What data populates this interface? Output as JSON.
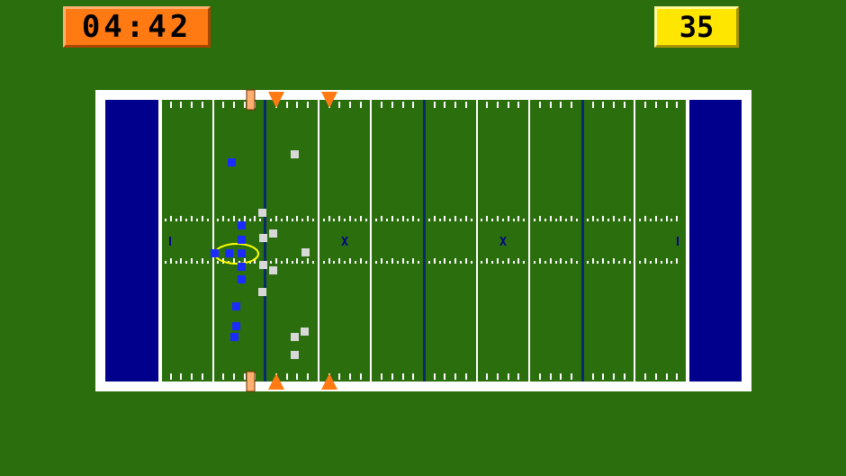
{
  "hud": {
    "game_clock": "04:42",
    "play_clock": "35"
  },
  "colors": {
    "background": "#2a6e0e",
    "field": "#2a6e0e",
    "endzone": "#00008c",
    "lines": "#ffffff",
    "scrimmage_line": "#0a2a6e",
    "marker": "#ff7a12",
    "offense": "#1a2cff",
    "defense": "#d8d8d8",
    "ball_carrier_highlight": "#ffff00"
  },
  "field": {
    "hash_x_labels": [
      "X",
      "X"
    ],
    "offense_player_count": 11,
    "defense_player_count": 11
  }
}
